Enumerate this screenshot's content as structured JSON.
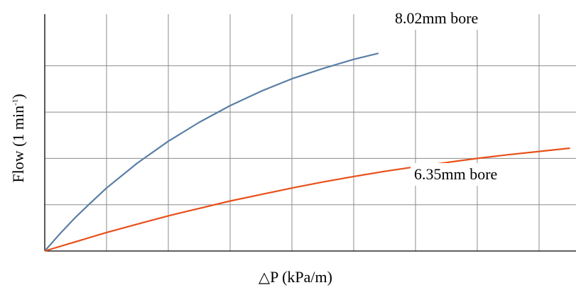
{
  "chart_data": {
    "type": "line",
    "title": "",
    "xlabel": {
      "symbol": "△",
      "text": "P  (kPa/m)"
    },
    "ylabel": {
      "prefix": "Flow (1 min",
      "superscript": "-1",
      "suffix": ")"
    },
    "xlim": [
      0,
      8.5
    ],
    "ylim": [
      0,
      5
    ],
    "grid": true,
    "x_gridlines": [
      1,
      2,
      3,
      4,
      5,
      6,
      7,
      8
    ],
    "y_gridlines": [
      1,
      2,
      3,
      4
    ],
    "series": [
      {
        "name": "8.02mm bore",
        "color": "#5b7fa6",
        "x": [
          0,
          0.25,
          0.5,
          0.75,
          1,
          1.5,
          2,
          2.5,
          3,
          3.5,
          4,
          4.5,
          5,
          5.4
        ],
        "y": [
          0,
          0.38,
          0.73,
          1.05,
          1.36,
          1.9,
          2.37,
          2.78,
          3.14,
          3.45,
          3.72,
          3.94,
          4.14,
          4.27
        ]
      },
      {
        "name": "6.35mm bore",
        "color": "#e8501a",
        "x": [
          0,
          0.5,
          1,
          1.5,
          2,
          2.5,
          3,
          3.5,
          4,
          4.5,
          5,
          5.5,
          6,
          6.5,
          7,
          7.5,
          8,
          8.5
        ],
        "y": [
          0,
          0.2,
          0.4,
          0.58,
          0.76,
          0.92,
          1.08,
          1.22,
          1.36,
          1.49,
          1.61,
          1.72,
          1.82,
          1.91,
          2.0,
          2.08,
          2.15,
          2.22
        ]
      }
    ]
  }
}
